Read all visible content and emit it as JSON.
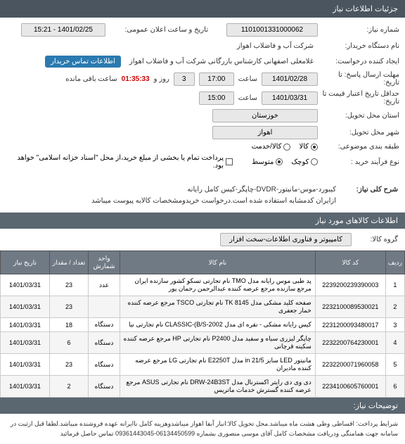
{
  "header": {
    "title": "جزئیات اطلاعات نیاز"
  },
  "form": {
    "req_number_label": "شماره نیاز:",
    "req_number_value": "1101001331000062",
    "announce_date_label": "تاریخ و ساعت اعلان عمومی:",
    "announce_date_value": "1401/02/25 - 15:21",
    "buyer_label": "نام دستگاه خریدار:",
    "buyer_value": "شرکت آب و فاضلاب اهواز",
    "creator_label": "ایجاد کننده درخواست:",
    "creator_value": "غلامعلی اصفهانی کارشناس بازرگانی شرکت آب و فاضلاب اهواز",
    "contact_btn": "اطلاعات تماس خریدار",
    "deadline_label": "مهلت ارسال پاسخ: تا تاریخ:",
    "deadline_date": "1401/02/28",
    "deadline_hour_label": "ساعت",
    "deadline_hour": "17:00",
    "day_label": "روز و",
    "day_value": "3",
    "remain_label": "ساعت باقی مانده",
    "remain_value": "01:35:33",
    "credit_label": "حداقل تاریخ اعتبار قیمت تا تاریخ:",
    "credit_date": "1401/03/31",
    "credit_hour": "15:00",
    "province_label": "استان محل تحویل:",
    "province_value": "خوزستان",
    "city_label": "شهر محل تحویل:",
    "city_value": "اهواز",
    "category_label": "طبقه بندی موضوعی:",
    "category_opt1": "کالا",
    "category_opt2": "کالا/خدمت",
    "buy_type_label": "نوع فرآیند خرید :",
    "buy_opt1": "کوچک",
    "buy_opt2": "متوسط",
    "pay_note": "پرداخت تمام یا بخشی از مبلغ خرید،از محل \"اسناد خزانه اسلامی\" خواهد بود."
  },
  "desc": {
    "title": "شرح کلی نیاز:",
    "text": "کیبورد-موس-مانیتور-DVDR-چاپگر-کیس کامل رایانه\nازایران کدمشابه استفاده شده است.درخواست خریدومشخصات کالابه پیوست میباشد"
  },
  "items_section": {
    "title": "اطلاعات کالاهای مورد نیاز",
    "group_label": "گروه کالا:",
    "group_value": "کامپیوتر و فناوری اطلاعات-سخت افزار"
  },
  "table": {
    "headers": {
      "idx": "ردیف",
      "code": "کد کالا",
      "name": "نام کالا",
      "unit": "واحد شمارش",
      "qty": "تعداد / مقدار",
      "date": "تاریخ نیاز"
    },
    "rows": [
      {
        "idx": "1",
        "code": "2239200239390003",
        "name": "پد طبی موس رایانه مدل TMO نام تجارتی تسکو کشور سازنده ایران مرجع سازنده مرجع عرضه کننده عبدالرحمن رحمان پور",
        "unit": "عدد",
        "qty": "23",
        "date": "1401/03/31"
      },
      {
        "idx": "2",
        "code": "2232100089530021",
        "name": "صفحه کلید مشکی مدل TK 8145 نام تجارتی TSCO مرجع عرضه کننده خمار جعفری",
        "unit": "",
        "qty": "23",
        "date": "1401/03/31"
      },
      {
        "idx": "3",
        "code": "2231200093480017",
        "name": "کیس رایانه مشکی - نقره ای مدل CLASSIC-(B/S-2002 نام تجارتی نیا",
        "unit": "دستگاه",
        "qty": "18",
        "date": "1401/03/31"
      },
      {
        "idx": "4",
        "code": "2232200764230001",
        "name": "چاپگر لیزری سیاه و سفید مدل P2400 نام تجارتی HP مرجع عرضه کننده سکینه قرچانی",
        "unit": "دستگاه",
        "qty": "6",
        "date": "1401/03/31"
      },
      {
        "idx": "5",
        "code": "2232200071960058",
        "name": "مانیتور LED سایز in 21/5 مدل E2250T نام تجارتی LG مرجع عرضه کننده مادیران",
        "unit": "دستگاه",
        "qty": "23",
        "date": "1401/03/31"
      },
      {
        "idx": "6",
        "code": "2234100605760001",
        "name": "دی وی دی رایتر اکسترنال مدل DRW-24B3ST نام تجارتی ASUS مرجع عرضه کننده گسترش خدمات ماتریس",
        "unit": "دستگاه",
        "qty": "2",
        "date": "1401/03/31"
      }
    ]
  },
  "conditions": {
    "title": "توضیحات نیاز:",
    "text": "شرایط پرداخت: اقساطی وطی هشت ماه میباشد.محل تحویل کالا:انبار آبفا اهواز میباشدوهزینه کامل ناایرانه عهده فروشنده میباشد.لطفا قبل ازثبت در سامانه جهت همامنگی ودریافت مشخصات کامل\nآقای موسی منصوری بشماره 06134450599-09361443045 تماس حاصل فرمائید"
  },
  "styling": {
    "header_bg": "#4a5560",
    "section_bg": "#5a6670",
    "table_header_bg": "#707a85",
    "field_bg": "#e8e8e8",
    "contact_btn_bg": "#2a7ab0",
    "remain_color": "#d00000"
  }
}
